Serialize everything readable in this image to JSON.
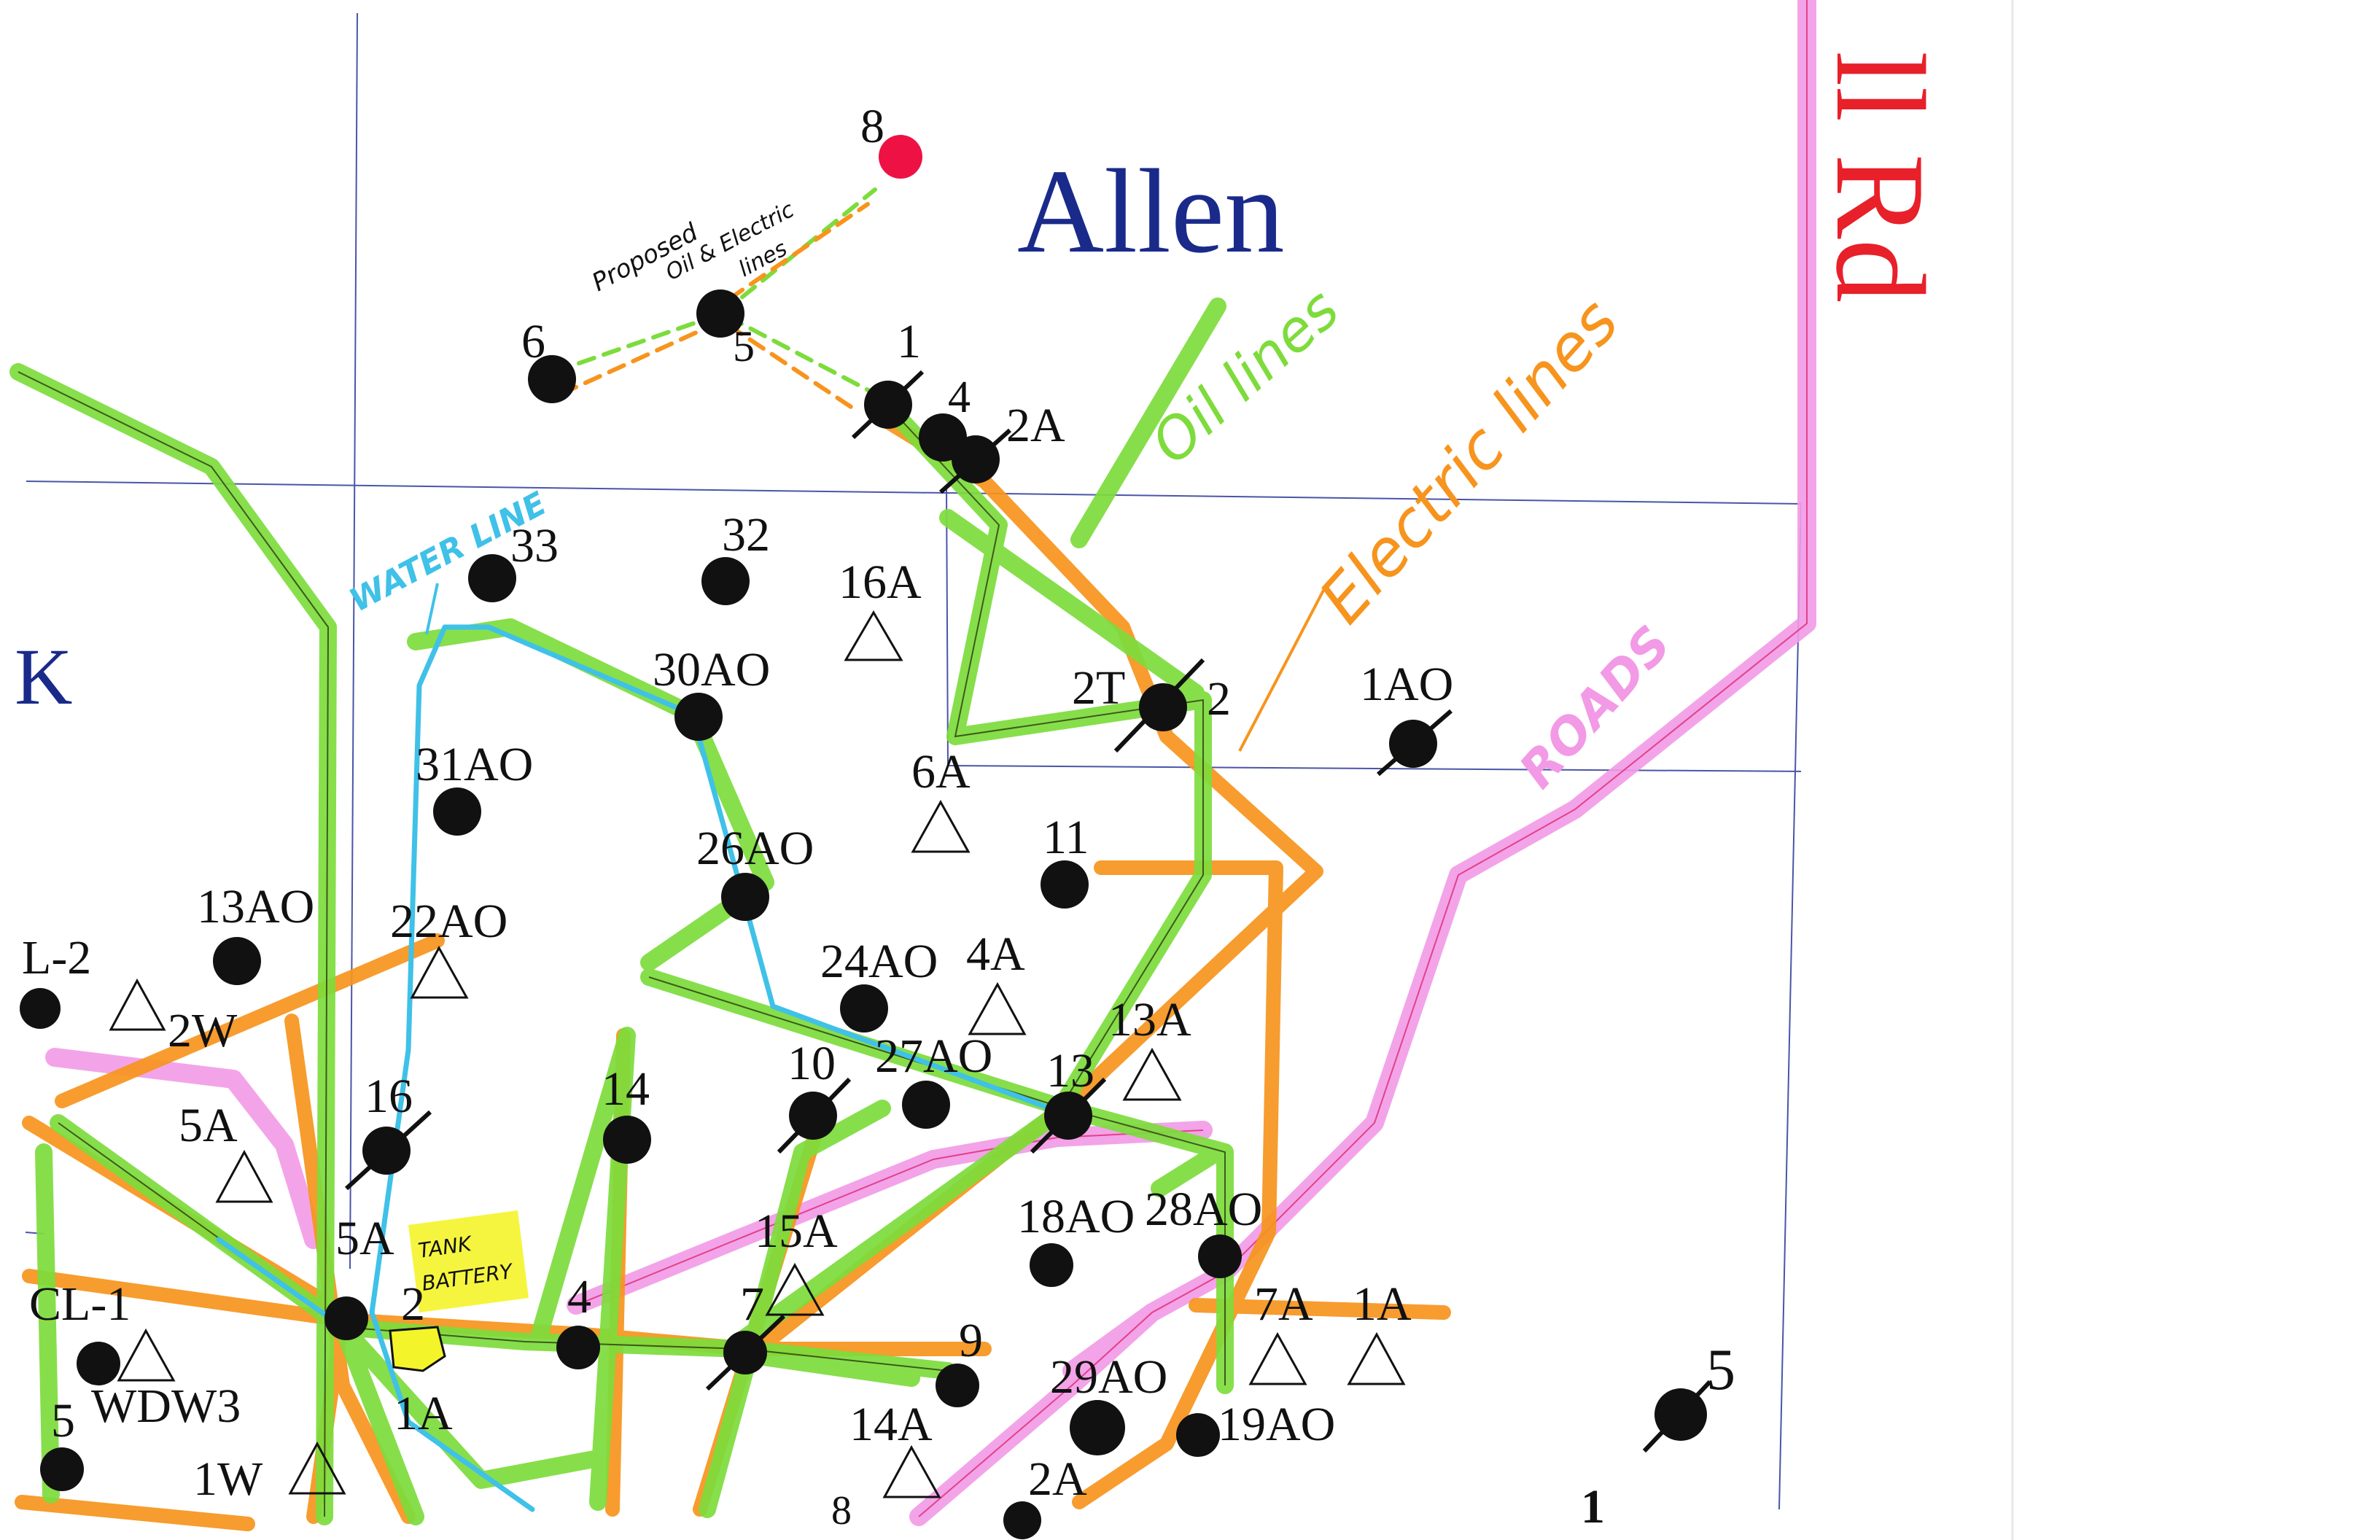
{
  "map": {
    "title": "Allen",
    "road_name": "ll Rd",
    "edge_label": "K",
    "annotations": {
      "proposed": [
        "Proposed",
        "Oil & Electric",
        "lines"
      ],
      "oil_lines": "Oil lines",
      "electric_lines": "Electric lines",
      "roads": "ROADS",
      "water_line": "WATER LINE",
      "tank_battery": [
        "TANK",
        "BATTERY"
      ]
    },
    "colors": {
      "oil_line": "#7ddc3c",
      "electric_line": "#f7941d",
      "road": "#f29ae6",
      "water_line": "#3fc1e8",
      "section_line": "#4a55a8",
      "title_blue": "#1a2a8a",
      "road_red": "#e8202a",
      "proposed_well": "#ee1144",
      "tank_battery": "#f4f42a"
    },
    "wells": [
      {
        "label": "8",
        "symbol": "proposed"
      },
      {
        "label": "6",
        "symbol": "producing"
      },
      {
        "label": "5",
        "symbol": "producing"
      },
      {
        "label": "1",
        "symbol": "plugged"
      },
      {
        "label": "4",
        "symbol": "producing"
      },
      {
        "label": "2A",
        "symbol": "plugged"
      },
      {
        "label": "33",
        "symbol": "producing"
      },
      {
        "label": "32",
        "symbol": "producing"
      },
      {
        "label": "16A",
        "symbol": "triangle"
      },
      {
        "label": "30AO",
        "symbol": "producing"
      },
      {
        "label": "2T",
        "symbol": "plugged"
      },
      {
        "label": "2",
        "symbol": "plugged"
      },
      {
        "label": "1AO",
        "symbol": "plugged"
      },
      {
        "label": "31AO",
        "symbol": "producing"
      },
      {
        "label": "6A",
        "symbol": "triangle"
      },
      {
        "label": "26AO",
        "symbol": "producing"
      },
      {
        "label": "11",
        "symbol": "producing"
      },
      {
        "label": "13AO",
        "symbol": "producing"
      },
      {
        "label": "22AO",
        "symbol": "triangle"
      },
      {
        "label": "L-2",
        "symbol": "producing"
      },
      {
        "label": "2W",
        "symbol": "triangle"
      },
      {
        "label": "24AO",
        "symbol": "producing"
      },
      {
        "label": "4A",
        "symbol": "triangle"
      },
      {
        "label": "13A",
        "symbol": "triangle"
      },
      {
        "label": "5A",
        "symbol": "triangle"
      },
      {
        "label": "16",
        "symbol": "plugged"
      },
      {
        "label": "14",
        "symbol": "producing"
      },
      {
        "label": "10",
        "symbol": "plugged"
      },
      {
        "label": "27AO",
        "symbol": "producing"
      },
      {
        "label": "13",
        "symbol": "plugged"
      },
      {
        "label": "18AO",
        "symbol": "producing"
      },
      {
        "label": "28AO",
        "symbol": "producing"
      },
      {
        "label": "5A",
        "symbol": "producing"
      },
      {
        "label": "15A",
        "symbol": "triangle"
      },
      {
        "label": "CL-1",
        "symbol": "producing"
      },
      {
        "label": "2",
        "symbol": "tank"
      },
      {
        "label": "4",
        "symbol": "producing"
      },
      {
        "label": "7",
        "symbol": "plugged"
      },
      {
        "label": "7A",
        "symbol": "triangle"
      },
      {
        "label": "1A",
        "symbol": "triangle"
      },
      {
        "label": "9",
        "symbol": "producing"
      },
      {
        "label": "29AO",
        "symbol": "producing"
      },
      {
        "label": "19AO",
        "symbol": "producing"
      },
      {
        "label": "5",
        "symbol": "plugged"
      },
      {
        "label": "WDW3",
        "symbol": "triangle"
      },
      {
        "label": "1A",
        "symbol": "producing"
      },
      {
        "label": "5",
        "symbol": "producing"
      },
      {
        "label": "1W",
        "symbol": "triangle"
      },
      {
        "label": "14A",
        "symbol": "triangle"
      },
      {
        "label": "2A",
        "symbol": "producing"
      },
      {
        "label": "8",
        "symbol": "producing"
      },
      {
        "label": "1",
        "symbol": "producing"
      }
    ]
  }
}
